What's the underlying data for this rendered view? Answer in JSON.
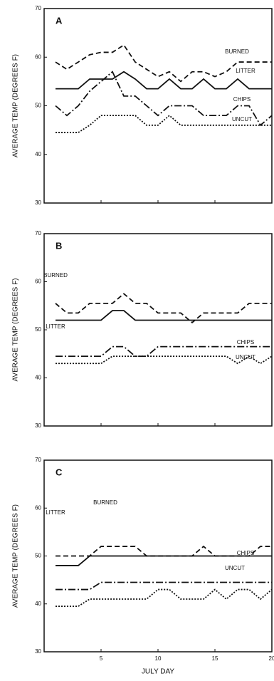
{
  "chart_data": [
    {
      "type": "line",
      "panel": "A",
      "ylabel": "AVERAGE TEMP (DEGREES F)",
      "x": [
        1,
        2,
        3,
        4,
        5,
        6,
        7,
        8,
        9,
        10,
        11,
        12,
        13,
        14,
        15,
        16,
        17,
        18,
        19,
        20
      ],
      "xlim": [
        0,
        20
      ],
      "xticks": [
        5,
        10,
        15,
        20
      ],
      "ylim": [
        30,
        70
      ],
      "yticks": [
        30,
        40,
        50,
        60,
        70
      ],
      "series": [
        {
          "name": "BURNED",
          "color": "#111",
          "line_style": "dashed",
          "values": [
            59,
            57.5,
            59,
            60.5,
            61,
            61,
            62.5,
            59,
            57.5,
            56,
            57,
            55,
            57,
            57,
            56,
            57,
            59,
            59,
            59,
            59
          ]
        },
        {
          "name": "LITTER",
          "color": "#111",
          "line_style": "solid",
          "values": [
            53.5,
            53.5,
            53.5,
            55.5,
            55.5,
            55.5,
            57,
            55.5,
            53.5,
            53.5,
            55.5,
            53.5,
            53.5,
            55.5,
            53.5,
            53.5,
            55.5,
            53.5,
            53.5,
            53.5
          ]
        },
        {
          "name": "CHIPS",
          "color": "#111",
          "line_style": "dashdot",
          "values": [
            50,
            48,
            50,
            53,
            55,
            57,
            52,
            52,
            50,
            48,
            50,
            50,
            50,
            48,
            48,
            48,
            50,
            50,
            46,
            48
          ]
        },
        {
          "name": "UNCUT",
          "color": "#111",
          "line_style": "dotted",
          "values": [
            44.5,
            44.5,
            44.5,
            46,
            48,
            48,
            48,
            48,
            46,
            46,
            48,
            46,
            46,
            46,
            46,
            46,
            46,
            46,
            46,
            46
          ]
        }
      ]
    },
    {
      "type": "line",
      "panel": "B",
      "ylabel": "AVERAGE TEMP (DEGREES F)",
      "x": [
        1,
        2,
        3,
        4,
        5,
        6,
        7,
        8,
        9,
        10,
        11,
        12,
        13,
        14,
        15,
        16,
        17,
        18,
        19,
        20
      ],
      "xlim": [
        0,
        20
      ],
      "xticks": [
        5,
        10,
        15,
        20
      ],
      "ylim": [
        30,
        70
      ],
      "yticks": [
        30,
        40,
        50,
        60,
        70
      ],
      "series": [
        {
          "name": "BURNED",
          "color": "#111",
          "line_style": "dashed",
          "values": [
            55.5,
            53.5,
            53.5,
            55.5,
            55.5,
            55.5,
            57.5,
            55.5,
            55.5,
            53.5,
            53.5,
            53.5,
            51.5,
            53.5,
            53.5,
            53.5,
            53.5,
            55.5,
            55.5,
            55.5
          ]
        },
        {
          "name": "LITTER",
          "color": "#111",
          "line_style": "solid",
          "values": [
            52,
            52,
            52,
            52,
            52,
            54,
            54,
            52,
            52,
            52,
            52,
            52,
            52,
            52,
            52,
            52,
            52,
            52,
            52,
            52
          ]
        },
        {
          "name": "CHIPS",
          "color": "#111",
          "line_style": "dashdot",
          "values": [
            44.5,
            44.5,
            44.5,
            44.5,
            44.5,
            46.5,
            46.5,
            44.5,
            44.5,
            46.5,
            46.5,
            46.5,
            46.5,
            46.5,
            46.5,
            46.5,
            46.5,
            46.5,
            46.5,
            46.5
          ]
        },
        {
          "name": "UNCUT",
          "color": "#111",
          "line_style": "dotted",
          "values": [
            43,
            43,
            43,
            43,
            43,
            44.5,
            44.5,
            44.5,
            44.5,
            44.5,
            44.5,
            44.5,
            44.5,
            44.5,
            44.5,
            44.5,
            43,
            44.5,
            43,
            44.5
          ]
        }
      ]
    },
    {
      "type": "line",
      "panel": "C",
      "ylabel": "AVERAGE TEMP (DEGREES F)",
      "xlabel": "JULY DAY",
      "x": [
        1,
        2,
        3,
        4,
        5,
        6,
        7,
        8,
        9,
        10,
        11,
        12,
        13,
        14,
        15,
        16,
        17,
        18,
        19,
        20
      ],
      "xlim": [
        0,
        20
      ],
      "xticks": [
        5,
        10,
        15,
        20
      ],
      "ylim": [
        30,
        70
      ],
      "yticks": [
        30,
        40,
        50,
        60,
        70
      ],
      "series": [
        {
          "name": "BURNED",
          "color": "#111",
          "line_style": "dashed",
          "values": [
            50,
            50,
            50,
            50,
            52,
            52,
            52,
            52,
            50,
            50,
            50,
            50,
            50,
            52,
            50,
            50,
            50,
            50,
            52,
            52
          ]
        },
        {
          "name": "LITTER",
          "color": "#111",
          "line_style": "solid",
          "values": [
            48,
            48,
            48,
            50,
            50,
            50,
            50,
            50,
            50,
            50,
            50,
            50,
            50,
            50,
            50,
            50,
            50,
            50,
            50,
            50
          ]
        },
        {
          "name": "CHIPS",
          "color": "#111",
          "line_style": "dashdot",
          "values": [
            43,
            43,
            43,
            43,
            44.5,
            44.5,
            44.5,
            44.5,
            44.5,
            44.5,
            44.5,
            44.5,
            44.5,
            44.5,
            44.5,
            44.5,
            44.5,
            44.5,
            44.5,
            44.5
          ]
        },
        {
          "name": "UNCUT",
          "color": "#111",
          "line_style": "dotted",
          "values": [
            39.5,
            39.5,
            39.5,
            41,
            41,
            41,
            41,
            41,
            41,
            43,
            43,
            41,
            41,
            41,
            43,
            41,
            43,
            43,
            41,
            43
          ]
        }
      ]
    }
  ]
}
